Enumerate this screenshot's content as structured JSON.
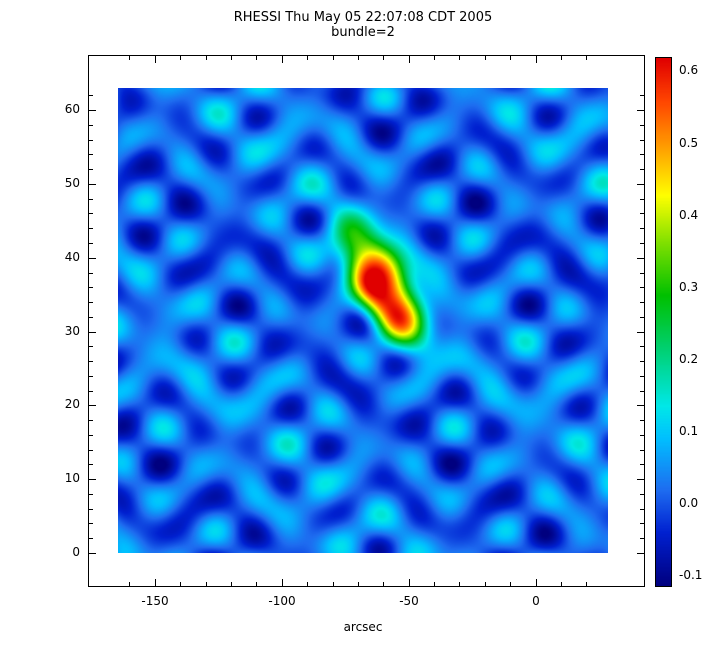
{
  "chart_data": {
    "type": "heatmap",
    "title": "RHESSI Thu May 05 22:07:08 CDT 2005",
    "subtitle": "bundle=2",
    "xlabel": "arcsec",
    "grid": false,
    "legend_position": "colorbar-right",
    "axes": {
      "x_range": [
        -164.5,
        28.5
      ],
      "y_range": [
        0,
        63
      ],
      "x_major_ticks": [
        -150,
        -100,
        -50,
        0
      ],
      "x_minor_step": 10,
      "y_major_ticks": [
        0,
        10,
        20,
        30,
        40,
        50,
        60
      ],
      "y_minor_step": 2
    },
    "colorbar": {
      "range": [
        -0.115,
        0.62
      ],
      "major_ticks": [
        -0.1,
        0.0,
        0.1,
        0.2,
        0.3,
        0.4,
        0.5,
        0.6
      ],
      "minor_step": 0.02,
      "label_decimals": 1
    },
    "colormap": [
      [
        0.0,
        "#00007f"
      ],
      [
        0.1,
        "#0020d0"
      ],
      [
        0.18,
        "#1e6cf0"
      ],
      [
        0.28,
        "#00c0ff"
      ],
      [
        0.34,
        "#00e8e8"
      ],
      [
        0.45,
        "#00d070"
      ],
      [
        0.55,
        "#00c000"
      ],
      [
        0.65,
        "#80e000"
      ],
      [
        0.74,
        "#ffff00"
      ],
      [
        0.83,
        "#ffa000"
      ],
      [
        0.92,
        "#ff4400"
      ],
      [
        1.0,
        "#e00000"
      ]
    ],
    "field": {
      "background_level": 0.02,
      "ripples": [
        {
          "amp": 0.042,
          "kx": 0.165,
          "ky": 0.661,
          "phase": 0.5
        },
        {
          "amp": 0.036,
          "kx": -0.217,
          "ky": 0.571,
          "phase": 2.1
        },
        {
          "amp": 0.03,
          "kx": 0.114,
          "ky": -0.766,
          "phase": 4.0
        },
        {
          "amp": 0.024,
          "kx": 0.273,
          "ky": 0.449,
          "phase": 1.0
        },
        {
          "amp": 0.02,
          "kx": 0.052,
          "ky": 0.157,
          "phase": 3.0
        }
      ],
      "peak": {
        "x": -60,
        "y": 36,
        "amplitude": 0.6,
        "sigma_x": 16,
        "sigma_y": 5.6,
        "rotation_rad": -0.35,
        "shape": 1.3
      }
    }
  }
}
